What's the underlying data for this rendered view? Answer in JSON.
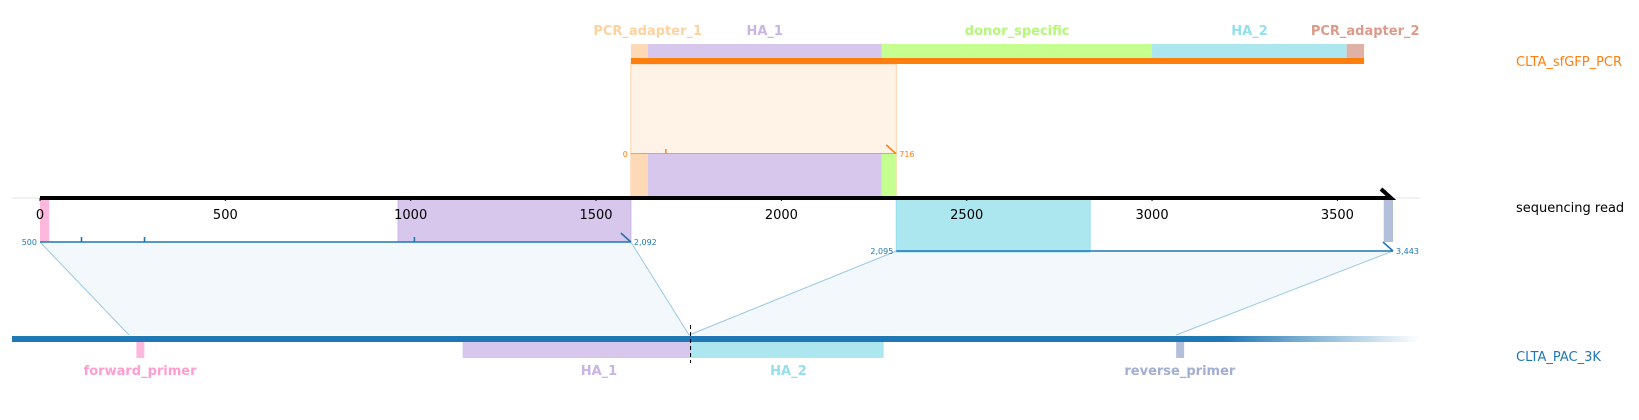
{
  "tracks": {
    "pcr": {
      "label": "CLTA_sfGFP_PCR",
      "color": "#ff7f0e"
    },
    "read": {
      "label": "sequencing read",
      "color": "#000000"
    },
    "ref": {
      "label": "CLTA_PAC_3K",
      "color": "#1f77b4"
    }
  },
  "read_axis": {
    "min": 0,
    "max": 3650,
    "ticks": [
      {
        "value": 0,
        "label": "0"
      },
      {
        "value": 500,
        "label": "500"
      },
      {
        "value": 1000,
        "label": "1000"
      },
      {
        "value": 1500,
        "label": "1500"
      },
      {
        "value": 2000,
        "label": "2000"
      },
      {
        "value": 2500,
        "label": "2500"
      },
      {
        "value": 3000,
        "label": "3000"
      },
      {
        "value": 3500,
        "label": "3500"
      }
    ]
  },
  "pcr_features": [
    {
      "name": "PCR_adapter_1",
      "start": 1594,
      "end": 1640,
      "color": "#fdd9b5"
    },
    {
      "name": "HA_1",
      "start": 1640,
      "end": 2271,
      "color": "#d8c7ec"
    },
    {
      "name": "donor_specific",
      "start": 2271,
      "end": 3000,
      "color": "#c5ff8f"
    },
    {
      "name": "HA_2",
      "start": 3000,
      "end": 3525,
      "color": "#ace6ef"
    },
    {
      "name": "PCR_adapter_2",
      "start": 3525,
      "end": 3572,
      "color": "#e0b2a6"
    }
  ],
  "read_features": [
    {
      "start": 0,
      "end": 25,
      "color": "#ffb8dd"
    },
    {
      "start": 966,
      "end": 1594,
      "color": "#d8c7ec"
    },
    {
      "start": 1594,
      "end": 1640,
      "color": "#fdd9b5"
    },
    {
      "start": 1640,
      "end": 2271,
      "color": "#d8c7ec"
    },
    {
      "start": 2271,
      "end": 2310,
      "color": "#c5ff8f"
    },
    {
      "start": 2310,
      "end": 2833,
      "color": "#ace6ef"
    },
    {
      "start": 3625,
      "end": 3650,
      "color": "#b4bfdc"
    }
  ],
  "pcr_alignment": {
    "start_label": "0",
    "end_label": "716",
    "read_start": 1594,
    "read_end": 2310
  },
  "ref_alignments": [
    {
      "start_label": "500",
      "end_label": "2,092",
      "read_start": 0,
      "read_end": 1594
    },
    {
      "start_label": "2,095",
      "end_label": "3,443",
      "read_start": 2310,
      "read_end": 3650
    }
  ],
  "ref_features": [
    {
      "name": "forward_primer",
      "start": 620,
      "end": 640,
      "color": "#ffb8dd"
    },
    {
      "name": "HA_1",
      "start": 1500,
      "end": 2115,
      "color": "#d8c7ec"
    },
    {
      "name": "HA_2",
      "start": 2115,
      "end": 2636,
      "color": "#ace6ef"
    },
    {
      "name": "reverse_primer",
      "start": 3425,
      "end": 3445,
      "color": "#b4bfdc"
    }
  ],
  "label_colors": {
    "PCR_adapter_1": "#fdd29f",
    "HA_1": "#c9b4e6",
    "donor_specific": "#b5f77a",
    "HA_2": "#93dfea",
    "PCR_adapter_2": "#dd9a8a",
    "forward_primer": "#ff9dd0",
    "reverse_primer": "#a2aed2"
  }
}
